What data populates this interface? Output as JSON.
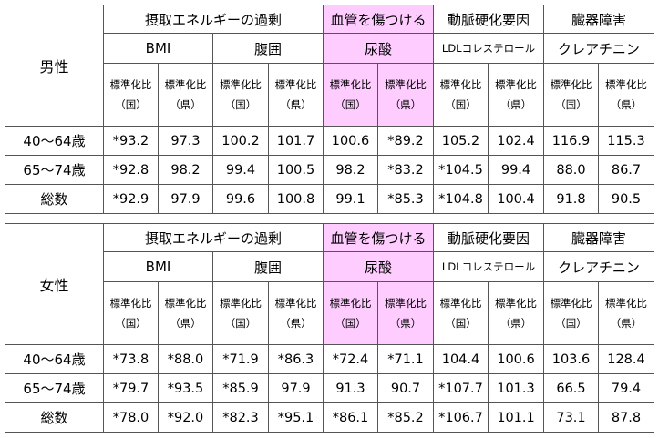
{
  "header": {
    "groups": [
      "摂取エネルギーの過剰",
      "血管を傷つける",
      "動脈硬化要因",
      "臓器障害"
    ],
    "subs": [
      "BMI",
      "腹囲",
      "尿酸",
      "LDLコレステロール",
      "クレアチニン"
    ],
    "ratio_national": "標準化比（国）",
    "ratio_prefecture": "標準化比（県）",
    "pink_color": "#ffccff"
  },
  "tables": [
    {
      "sex": "男性",
      "rows": [
        {
          "label": "40～64歳",
          "values": [
            "*93.2",
            "97.3",
            "100.2",
            "101.7",
            "100.6",
            "*89.2",
            "105.2",
            "102.4",
            "116.9",
            "115.3"
          ]
        },
        {
          "label": "65～74歳",
          "values": [
            "*92.8",
            "98.2",
            "99.4",
            "100.5",
            "98.2",
            "*83.2",
            "*104.5",
            "99.4",
            "88.0",
            "86.7"
          ]
        },
        {
          "label": "総数",
          "values": [
            "*92.9",
            "97.9",
            "99.6",
            "100.8",
            "99.1",
            "*85.3",
            "*104.8",
            "100.4",
            "91.8",
            "90.5"
          ]
        }
      ]
    },
    {
      "sex": "女性",
      "rows": [
        {
          "label": "40～64歳",
          "values": [
            "*73.8",
            "*88.0",
            "*71.9",
            "*86.3",
            "*72.4",
            "*71.1",
            "104.4",
            "100.6",
            "103.6",
            "128.4"
          ]
        },
        {
          "label": "65～74歳",
          "values": [
            "*79.7",
            "*93.5",
            "*85.9",
            "97.9",
            "91.3",
            "90.7",
            "*107.7",
            "101.3",
            "66.5",
            "79.4"
          ]
        },
        {
          "label": "総数",
          "values": [
            "*78.0",
            "*92.0",
            "*82.3",
            "*95.1",
            "*86.1",
            "*85.2",
            "*106.7",
            "101.1",
            "73.1",
            "87.8"
          ]
        }
      ]
    }
  ]
}
